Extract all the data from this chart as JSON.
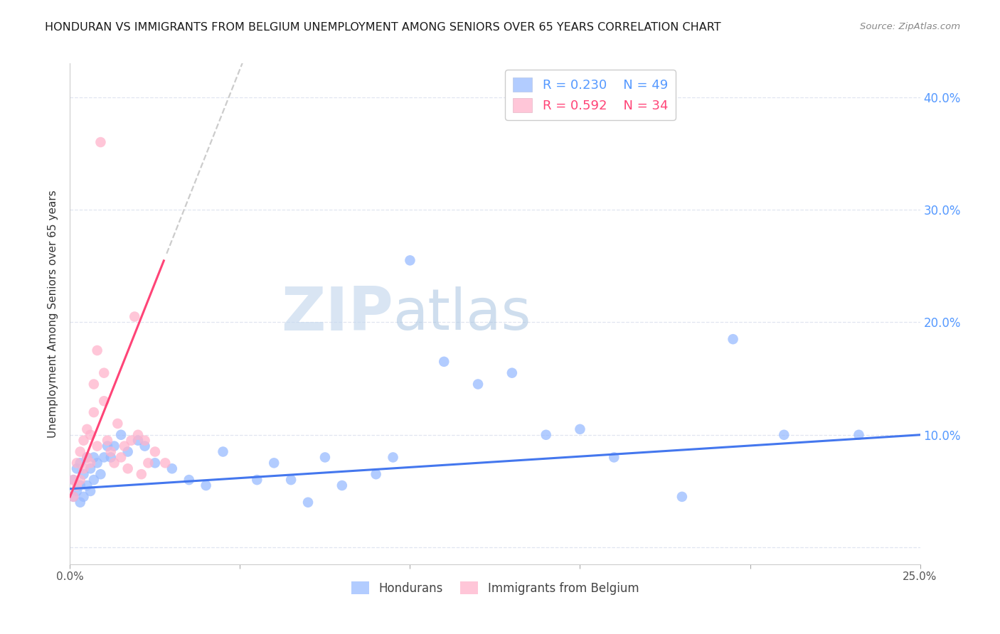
{
  "title": "HONDURAN VS IMMIGRANTS FROM BELGIUM UNEMPLOYMENT AMONG SENIORS OVER 65 YEARS CORRELATION CHART",
  "source": "Source: ZipAtlas.com",
  "ylabel": "Unemployment Among Seniors over 65 years",
  "right_ytick_labels": [
    "10.0%",
    "20.0%",
    "30.0%",
    "40.0%"
  ],
  "right_ytick_values": [
    0.1,
    0.2,
    0.3,
    0.4
  ],
  "x_tick_labels": [
    "0.0%",
    "",
    "",
    "",
    "",
    "25.0%"
  ],
  "x_tick_values": [
    0.0,
    0.05,
    0.1,
    0.15,
    0.2,
    0.25
  ],
  "xlim": [
    0.0,
    0.25
  ],
  "ylim": [
    -0.015,
    0.43
  ],
  "legend_R1": "R = 0.230",
  "legend_N1": "N = 49",
  "legend_R2": "R = 0.592",
  "legend_N2": "N = 34",
  "blue_scatter_color": "#99BBFF",
  "pink_scatter_color": "#FFB3CC",
  "blue_line_color": "#4477EE",
  "pink_line_color": "#FF4477",
  "dash_line_color": "#CCCCCC",
  "watermark_zip": "ZIP",
  "watermark_atlas": "atlas",
  "watermark_color_zip": "#C8D8EE",
  "watermark_color_atlas": "#A8C8E8",
  "title_color": "#1A1A1A",
  "source_color": "#888888",
  "axis_label_color": "#333333",
  "tick_color_right": "#5599FF",
  "grid_color": "#E0E5F0",
  "r_n_color_blue": "#5599FF",
  "r_n_color_pink": "#FF4477",
  "hon_x": [
    0.001,
    0.001,
    0.002,
    0.002,
    0.003,
    0.003,
    0.003,
    0.004,
    0.004,
    0.005,
    0.005,
    0.006,
    0.006,
    0.007,
    0.007,
    0.008,
    0.009,
    0.01,
    0.011,
    0.012,
    0.013,
    0.015,
    0.017,
    0.02,
    0.022,
    0.025,
    0.03,
    0.035,
    0.04,
    0.045,
    0.055,
    0.06,
    0.065,
    0.07,
    0.075,
    0.08,
    0.09,
    0.095,
    0.1,
    0.11,
    0.12,
    0.13,
    0.14,
    0.15,
    0.16,
    0.18,
    0.195,
    0.21,
    0.232
  ],
  "hon_y": [
    0.045,
    0.06,
    0.05,
    0.07,
    0.04,
    0.055,
    0.075,
    0.045,
    0.065,
    0.055,
    0.08,
    0.05,
    0.07,
    0.06,
    0.08,
    0.075,
    0.065,
    0.08,
    0.09,
    0.08,
    0.09,
    0.1,
    0.085,
    0.095,
    0.09,
    0.075,
    0.07,
    0.06,
    0.055,
    0.085,
    0.06,
    0.075,
    0.06,
    0.04,
    0.08,
    0.055,
    0.065,
    0.08,
    0.255,
    0.165,
    0.145,
    0.155,
    0.1,
    0.105,
    0.08,
    0.045,
    0.185,
    0.1,
    0.1
  ],
  "bel_x": [
    0.001,
    0.001,
    0.002,
    0.002,
    0.003,
    0.003,
    0.004,
    0.004,
    0.005,
    0.005,
    0.006,
    0.006,
    0.007,
    0.007,
    0.008,
    0.008,
    0.009,
    0.01,
    0.01,
    0.011,
    0.012,
    0.013,
    0.014,
    0.015,
    0.016,
    0.017,
    0.018,
    0.019,
    0.02,
    0.021,
    0.022,
    0.023,
    0.025,
    0.028
  ],
  "bel_y": [
    0.045,
    0.06,
    0.055,
    0.075,
    0.06,
    0.085,
    0.07,
    0.095,
    0.08,
    0.105,
    0.075,
    0.1,
    0.12,
    0.145,
    0.09,
    0.175,
    0.36,
    0.13,
    0.155,
    0.095,
    0.085,
    0.075,
    0.11,
    0.08,
    0.09,
    0.07,
    0.095,
    0.205,
    0.1,
    0.065,
    0.095,
    0.075,
    0.085,
    0.075
  ]
}
